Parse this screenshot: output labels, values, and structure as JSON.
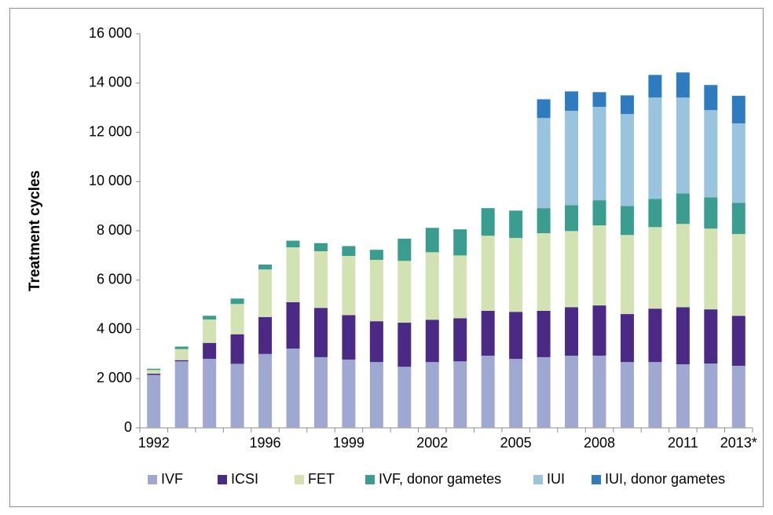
{
  "chart_data": {
    "type": "stacked_bar",
    "y_label": "Treatment cycles",
    "categories": [
      "1992",
      null,
      null,
      null,
      "1996",
      null,
      null,
      "1999",
      null,
      null,
      "2002",
      null,
      null,
      "2005",
      null,
      null,
      "2008",
      null,
      null,
      "2011",
      null,
      "2013*"
    ],
    "series": [
      {
        "name": "IVF",
        "color": "#9fa8d0",
        "values": [
          2150,
          2700,
          2800,
          2600,
          3000,
          3220,
          2870,
          2770,
          2670,
          2480,
          2670,
          2700,
          2930,
          2800,
          2870,
          2930,
          2930,
          2670,
          2670,
          2580,
          2610,
          2520
        ]
      },
      {
        "name": "ICSI",
        "color": "#4b2a85",
        "values": [
          50,
          50,
          650,
          1200,
          1500,
          1880,
          2000,
          1810,
          1660,
          1790,
          1720,
          1750,
          1820,
          1910,
          1880,
          1970,
          2040,
          1950,
          2170,
          2320,
          2200,
          2030
        ]
      },
      {
        "name": "FET",
        "color": "#d2e2b3",
        "values": [
          150,
          450,
          950,
          1230,
          1930,
          2230,
          2300,
          2400,
          2490,
          2510,
          2740,
          2550,
          3050,
          3000,
          3150,
          3090,
          3250,
          3210,
          3310,
          3380,
          3280,
          3320
        ]
      },
      {
        "name": "IVF, donor gametes",
        "color": "#3a9d8f",
        "values": [
          50,
          100,
          150,
          220,
          200,
          270,
          330,
          400,
          410,
          900,
          990,
          1060,
          1120,
          1110,
          1020,
          1050,
          1020,
          1180,
          1150,
          1240,
          1270,
          1270
        ]
      },
      {
        "name": "IUI",
        "color": "#9ac3de",
        "values": [
          0,
          0,
          0,
          0,
          0,
          0,
          0,
          0,
          0,
          0,
          0,
          0,
          0,
          0,
          3660,
          3830,
          3790,
          3730,
          4110,
          3890,
          3540,
          3220
        ]
      },
      {
        "name": "IUI, donor gametes",
        "color": "#2e7cbf",
        "values": [
          0,
          0,
          0,
          0,
          0,
          0,
          0,
          0,
          0,
          0,
          0,
          0,
          0,
          0,
          760,
          790,
          600,
          760,
          920,
          1020,
          1020,
          1120
        ]
      }
    ],
    "ylim": [
      0,
      16000
    ],
    "yticks": [
      0,
      {
        "value": 2000,
        "label": "2 000"
      },
      {
        "value": 4000,
        "label": "4 000"
      },
      {
        "value": 6000,
        "label": "6 000"
      },
      {
        "value": 8000,
        "label": "8 000"
      },
      {
        "value": 10000,
        "label": "10 000"
      },
      {
        "value": 12000,
        "label": "12 000"
      },
      {
        "value": 14000,
        "label": "14 000"
      },
      {
        "value": 16000,
        "label": "16 000"
      }
    ],
    "legend": "bottom"
  }
}
